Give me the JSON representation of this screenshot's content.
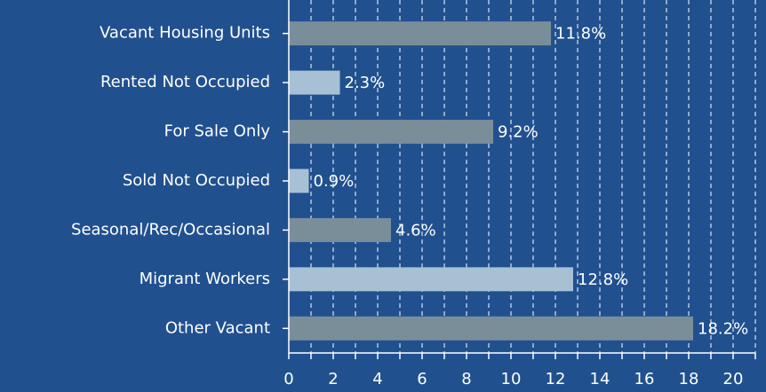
{
  "chart_data": {
    "type": "barh",
    "categories": [
      "Vacant Housing Units",
      "Rented Not Occupied",
      "For Sale Only",
      "Sold Not Occupied",
      "Seasonal/Rec/Occasional",
      "Migrant Workers",
      "Other Vacant"
    ],
    "values": [
      11.8,
      2.3,
      9.2,
      0.9,
      4.6,
      12.8,
      18.2
    ],
    "value_labels": [
      "11.8%",
      "2.3%",
      "9.2%",
      "0.9%",
      "4.6%",
      "12.8%",
      "18.2%"
    ],
    "colors": [
      "#7a8e9a",
      "#a8c0d4",
      "#7a8e9a",
      "#a8c0d4",
      "#7a8e9a",
      "#a8c0d4",
      "#7a8e9a"
    ],
    "xlim": [
      0,
      21
    ],
    "xticks": [
      0,
      2,
      4,
      6,
      8,
      10,
      12,
      14,
      16,
      18,
      20
    ],
    "xminorticks": [
      1,
      3,
      5,
      7,
      9,
      11,
      13,
      15,
      17,
      19,
      21
    ],
    "grid": true
  }
}
